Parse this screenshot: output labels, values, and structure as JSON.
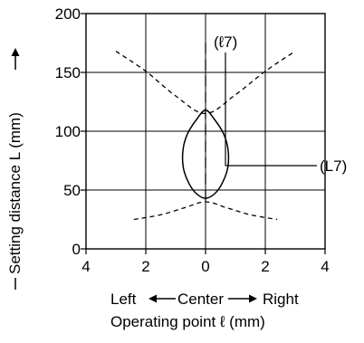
{
  "chart_data": {
    "type": "line",
    "ylabel": "Setting distance L (mm)",
    "xlabel_direction": {
      "left": "Left",
      "center": "Center",
      "right": "Right"
    },
    "xlabel": "Operating point ℓ (mm)",
    "xlim": [
      -4,
      4
    ],
    "ylim": [
      0,
      200
    ],
    "x_ticks": [
      -4,
      -2,
      0,
      2,
      4
    ],
    "x_tick_labels": [
      "4",
      "2",
      "0",
      "2",
      "4"
    ],
    "y_ticks": [
      0,
      50,
      100,
      150,
      200
    ],
    "y_tick_labels": [
      "0",
      "50",
      "100",
      "150",
      "200"
    ],
    "grid": true,
    "annotations": [
      {
        "text": "(ℓ7)"
      },
      {
        "text": "(L7)"
      }
    ],
    "series": [
      {
        "style": "solid",
        "points": [
          [
            0,
            118
          ],
          [
            -0.3,
            110
          ],
          [
            -0.6,
            98
          ],
          [
            -0.75,
            85
          ],
          [
            -0.75,
            70
          ],
          [
            -0.6,
            58
          ],
          [
            -0.35,
            48
          ],
          [
            0,
            43
          ],
          [
            0.35,
            48
          ],
          [
            0.6,
            58
          ],
          [
            0.75,
            70
          ],
          [
            0.75,
            85
          ],
          [
            0.6,
            98
          ],
          [
            0.3,
            110
          ],
          [
            0,
            118
          ]
        ]
      },
      {
        "style": "dashed",
        "points": [
          [
            -3,
            168
          ],
          [
            -2,
            151
          ],
          [
            -1,
            130
          ],
          [
            0,
            115
          ],
          [
            1,
            131
          ],
          [
            2,
            151
          ],
          [
            3,
            168
          ]
        ]
      },
      {
        "style": "dashed",
        "points": [
          [
            -2.4,
            25
          ],
          [
            -1.5,
            29
          ],
          [
            -0.7,
            35
          ],
          [
            0,
            40
          ],
          [
            0.7,
            35
          ],
          [
            1.5,
            29
          ],
          [
            2.4,
            25
          ]
        ]
      },
      {
        "style": "dashed-axis",
        "points": [
          [
            0,
            175
          ],
          [
            0,
            40
          ]
        ]
      }
    ]
  }
}
